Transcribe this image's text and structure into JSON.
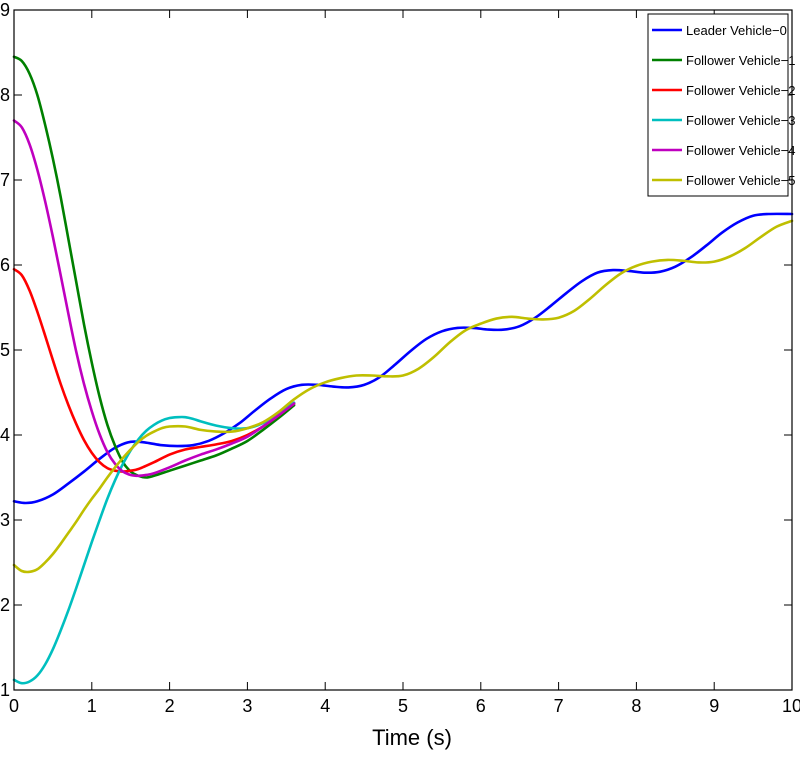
{
  "chart_data": {
    "type": "line",
    "title": "",
    "xlabel": "Time (s)",
    "ylabel": "",
    "xlim": [
      0,
      10
    ],
    "ylim": [
      1,
      9
    ],
    "xticks": [
      0,
      1,
      2,
      3,
      4,
      5,
      6,
      7,
      8,
      9,
      10
    ],
    "yticks": [
      1,
      2,
      3,
      4,
      5,
      6,
      7,
      8,
      9
    ],
    "grid": false,
    "legend_position": "top-right",
    "series": [
      {
        "name": "Leader Vehicle−0",
        "color": "#0000ff",
        "x": [
          0,
          0.15,
          0.3,
          0.5,
          0.7,
          0.9,
          1.1,
          1.3,
          1.5,
          1.7,
          1.9,
          2.1,
          2.3,
          2.5,
          2.7,
          2.9,
          3.1,
          3.3,
          3.5,
          3.7,
          3.9,
          4.1,
          4.3,
          4.5,
          4.7,
          4.9,
          5.1,
          5.3,
          5.5,
          5.7,
          5.9,
          6.1,
          6.3,
          6.5,
          6.7,
          6.9,
          7.1,
          7.3,
          7.5,
          7.7,
          7.9,
          8.1,
          8.3,
          8.5,
          8.7,
          8.9,
          9.1,
          9.3,
          9.5,
          9.7,
          10
        ],
        "y": [
          3.22,
          3.2,
          3.22,
          3.3,
          3.43,
          3.57,
          3.72,
          3.85,
          3.92,
          3.91,
          3.88,
          3.87,
          3.88,
          3.93,
          4.02,
          4.14,
          4.29,
          4.43,
          4.54,
          4.59,
          4.59,
          4.57,
          4.56,
          4.59,
          4.68,
          4.83,
          4.99,
          5.13,
          5.22,
          5.26,
          5.26,
          5.24,
          5.24,
          5.28,
          5.38,
          5.52,
          5.67,
          5.81,
          5.91,
          5.94,
          5.93,
          5.91,
          5.92,
          5.98,
          6.09,
          6.23,
          6.38,
          6.5,
          6.58,
          6.6,
          6.6
        ]
      },
      {
        "name": "Follower Vehicle−1",
        "color": "#008000",
        "x": [
          0,
          0.1,
          0.2,
          0.3,
          0.4,
          0.5,
          0.6,
          0.7,
          0.8,
          0.9,
          1.0,
          1.1,
          1.2,
          1.3,
          1.4,
          1.5,
          1.6,
          1.7,
          1.8,
          2.0,
          2.2,
          2.4,
          2.6,
          2.8,
          3.0,
          3.2,
          3.4,
          3.6
        ],
        "y": [
          8.45,
          8.4,
          8.25,
          8.0,
          7.65,
          7.25,
          6.8,
          6.3,
          5.8,
          5.3,
          4.85,
          4.45,
          4.12,
          3.87,
          3.68,
          3.57,
          3.52,
          3.5,
          3.52,
          3.58,
          3.64,
          3.7,
          3.76,
          3.84,
          3.93,
          4.06,
          4.2,
          4.35
        ]
      },
      {
        "name": "Follower Vehicle−2",
        "color": "#ff0000",
        "x": [
          0,
          0.1,
          0.2,
          0.3,
          0.4,
          0.5,
          0.6,
          0.7,
          0.8,
          0.9,
          1.0,
          1.1,
          1.2,
          1.3,
          1.4,
          1.5,
          1.6,
          1.8,
          2.0,
          2.2,
          2.4,
          2.6,
          2.8,
          3.0,
          3.2,
          3.4,
          3.6
        ],
        "y": [
          5.95,
          5.88,
          5.7,
          5.45,
          5.17,
          4.88,
          4.6,
          4.35,
          4.13,
          3.94,
          3.79,
          3.68,
          3.61,
          3.58,
          3.57,
          3.58,
          3.6,
          3.68,
          3.77,
          3.83,
          3.86,
          3.89,
          3.93,
          4.0,
          4.1,
          4.23,
          4.37
        ]
      },
      {
        "name": "Follower Vehicle−3",
        "color": "#00bfbf",
        "x": [
          0,
          0.1,
          0.2,
          0.3,
          0.4,
          0.5,
          0.6,
          0.7,
          0.8,
          0.9,
          1.0,
          1.1,
          1.2,
          1.3,
          1.4,
          1.5,
          1.6,
          1.7,
          1.8,
          1.9,
          2.0,
          2.1,
          2.2,
          2.3,
          2.4,
          2.6,
          2.8,
          3.0,
          3.2,
          3.4,
          3.6
        ],
        "y": [
          1.12,
          1.08,
          1.1,
          1.17,
          1.3,
          1.48,
          1.7,
          1.94,
          2.2,
          2.47,
          2.74,
          3.0,
          3.25,
          3.47,
          3.66,
          3.82,
          3.95,
          4.05,
          4.12,
          4.17,
          4.2,
          4.21,
          4.21,
          4.19,
          4.16,
          4.11,
          4.08,
          4.08,
          4.14,
          4.25,
          4.38
        ]
      },
      {
        "name": "Follower Vehicle−4",
        "color": "#bf00bf",
        "x": [
          0,
          0.1,
          0.2,
          0.3,
          0.4,
          0.5,
          0.6,
          0.7,
          0.8,
          0.9,
          1.0,
          1.1,
          1.2,
          1.3,
          1.4,
          1.5,
          1.6,
          1.7,
          1.8,
          2.0,
          2.2,
          2.4,
          2.6,
          2.8,
          3.0,
          3.2,
          3.4,
          3.6
        ],
        "y": [
          7.7,
          7.62,
          7.42,
          7.12,
          6.75,
          6.33,
          5.88,
          5.42,
          4.98,
          4.6,
          4.28,
          4.01,
          3.8,
          3.66,
          3.57,
          3.53,
          3.52,
          3.53,
          3.55,
          3.62,
          3.7,
          3.77,
          3.83,
          3.9,
          3.98,
          4.1,
          4.23,
          4.37
        ]
      },
      {
        "name": "Follower Vehicle−5",
        "color": "#bfbf00",
        "x": [
          0,
          0.1,
          0.2,
          0.3,
          0.4,
          0.5,
          0.6,
          0.7,
          0.8,
          0.9,
          1.0,
          1.1,
          1.2,
          1.3,
          1.4,
          1.5,
          1.6,
          1.7,
          1.8,
          1.9,
          2.0,
          2.2,
          2.4,
          2.6,
          2.8,
          3.0,
          3.2,
          3.4,
          3.6,
          3.8,
          4.0,
          4.2,
          4.4,
          4.6,
          4.8,
          5.0,
          5.2,
          5.4,
          5.6,
          5.8,
          6.0,
          6.2,
          6.4,
          6.6,
          6.8,
          7.0,
          7.2,
          7.4,
          7.6,
          7.8,
          8.0,
          8.2,
          8.4,
          8.6,
          8.8,
          9.0,
          9.2,
          9.4,
          9.6,
          9.8,
          10
        ],
        "y": [
          2.47,
          2.4,
          2.39,
          2.42,
          2.5,
          2.6,
          2.72,
          2.85,
          2.98,
          3.12,
          3.25,
          3.37,
          3.5,
          3.62,
          3.73,
          3.83,
          3.92,
          3.99,
          4.04,
          4.08,
          4.1,
          4.1,
          4.06,
          4.04,
          4.04,
          4.08,
          4.15,
          4.27,
          4.42,
          4.54,
          4.62,
          4.67,
          4.7,
          4.7,
          4.69,
          4.7,
          4.78,
          4.92,
          5.09,
          5.23,
          5.31,
          5.37,
          5.39,
          5.37,
          5.36,
          5.38,
          5.46,
          5.6,
          5.76,
          5.9,
          5.99,
          6.04,
          6.06,
          6.05,
          6.03,
          6.04,
          6.1,
          6.2,
          6.33,
          6.45,
          6.52
        ]
      }
    ]
  }
}
